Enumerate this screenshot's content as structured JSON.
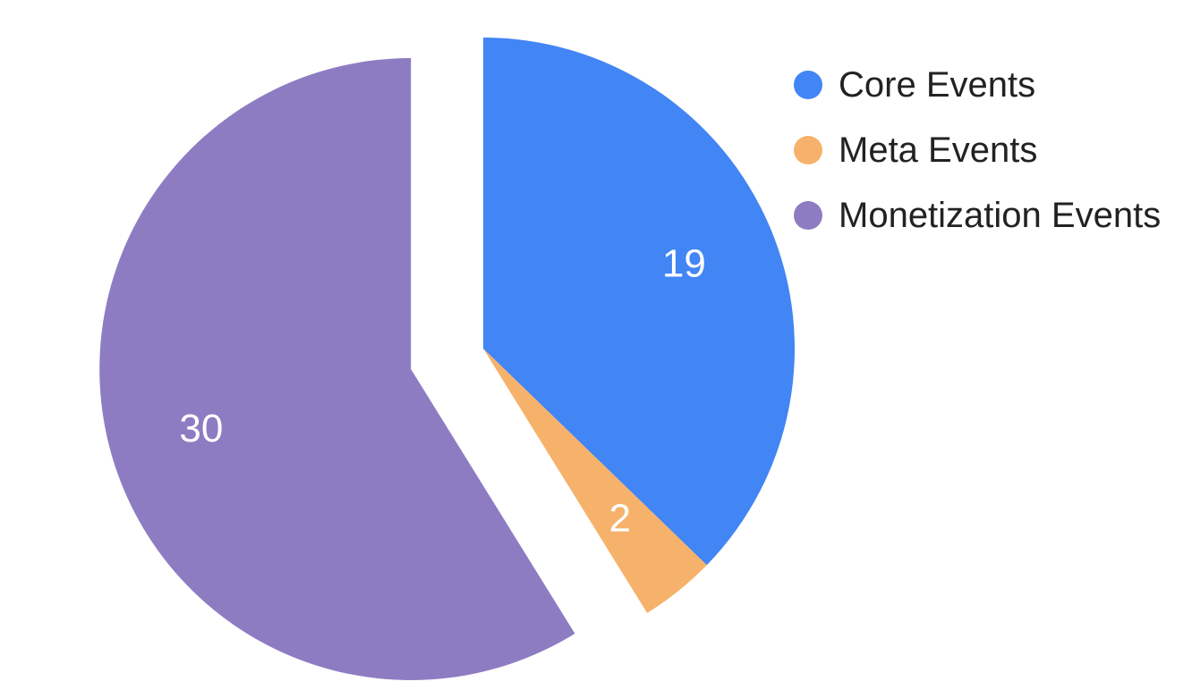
{
  "chart_data": {
    "type": "pie",
    "categories": [
      "Core Events",
      "Meta Events",
      "Monetization Events"
    ],
    "values": [
      19,
      2,
      30
    ],
    "colors": [
      "#4285f4",
      "#f6b26b",
      "#8e7cc3"
    ],
    "data_labels": [
      "19",
      "2",
      "30"
    ],
    "exploded_slice": "Monetization Events",
    "legend_position": "right",
    "title": ""
  }
}
